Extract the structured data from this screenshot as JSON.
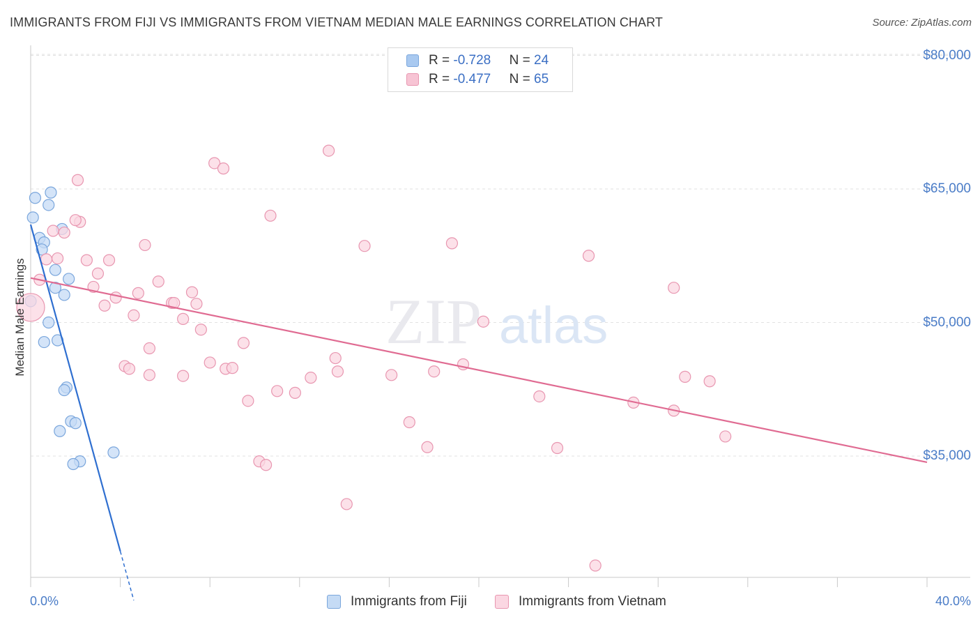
{
  "title": "IMMIGRANTS FROM FIJI VS IMMIGRANTS FROM VIETNAM MEDIAN MALE EARNINGS CORRELATION CHART",
  "source": "Source: ZipAtlas.com",
  "watermark": {
    "part1": "ZIP",
    "part2": "atlas"
  },
  "stats": [
    {
      "r_label": "R = ",
      "r_value": "-0.728",
      "n_label": "N = ",
      "n_value": "24",
      "color": "#a9c9f0",
      "border": "#7aa6dc"
    },
    {
      "r_label": "R = ",
      "r_value": "-0.477",
      "n_label": "N = ",
      "n_value": "65",
      "color": "#f7c4d4",
      "border": "#e896b0"
    }
  ],
  "legend": [
    {
      "label": "Immigrants from Fiji",
      "color": "#c5dbf5",
      "border": "#7aa6dc"
    },
    {
      "label": "Immigrants from Vietnam",
      "color": "#fbd7e2",
      "border": "#e896b0"
    }
  ],
  "chart_data": {
    "type": "scatter",
    "title": "IMMIGRANTS FROM FIJI VS IMMIGRANTS FROM VIETNAM MEDIAN MALE EARNINGS CORRELATION CHART",
    "xlabel": "",
    "ylabel": "Median Male Earnings",
    "xlim": [
      0,
      40
    ],
    "ylim": [
      20000,
      82000
    ],
    "x_tick_labels": [
      "0.0%",
      "40.0%"
    ],
    "y_ticks": [
      35000,
      50000,
      65000,
      80000
    ],
    "y_tick_labels": [
      "$35,000",
      "$50,000",
      "$65,000",
      "$80,000"
    ],
    "grid": true,
    "series": [
      {
        "name": "Immigrants from Fiji",
        "color": "#7aa6dc",
        "fill": "#c5dbf5",
        "line_color": "#2f6fd0",
        "trend": {
          "x1": 0.0,
          "y1": 61000,
          "x2": 4.0,
          "y2": 24300,
          "dashed_to_x": 4.6
        },
        "points": [
          [
            0.2,
            64000
          ],
          [
            0.9,
            64600
          ],
          [
            0.8,
            63200
          ],
          [
            0.1,
            61800
          ],
          [
            1.4,
            60500
          ],
          [
            0.4,
            59500
          ],
          [
            0.6,
            59000
          ],
          [
            0.5,
            58200
          ],
          [
            1.1,
            55900
          ],
          [
            1.7,
            54900
          ],
          [
            1.1,
            53900
          ],
          [
            1.5,
            53100
          ],
          [
            0.0,
            52400
          ],
          [
            0.8,
            50000
          ],
          [
            1.2,
            48000
          ],
          [
            0.6,
            47800
          ],
          [
            1.6,
            42700
          ],
          [
            1.5,
            42400
          ],
          [
            1.8,
            38900
          ],
          [
            2.0,
            38700
          ],
          [
            1.3,
            37800
          ],
          [
            3.7,
            35400
          ],
          [
            2.2,
            34400
          ],
          [
            1.9,
            34100
          ]
        ]
      },
      {
        "name": "Immigrants from Vietnam",
        "color": "#e896b0",
        "fill": "#fbd7e2",
        "line_color": "#e06b92",
        "trend": {
          "x1": 0.0,
          "y1": 55000,
          "x2": 40.0,
          "y2": 34300
        },
        "points": [
          [
            0.0,
            51700
          ],
          [
            0.4,
            54800
          ],
          [
            0.7,
            57100
          ],
          [
            1.2,
            57200
          ],
          [
            1.0,
            60300
          ],
          [
            1.5,
            60100
          ],
          [
            2.2,
            61300
          ],
          [
            2.0,
            61500
          ],
          [
            2.1,
            66000
          ],
          [
            2.5,
            57000
          ],
          [
            3.0,
            55500
          ],
          [
            2.8,
            54000
          ],
          [
            3.5,
            57000
          ],
          [
            3.3,
            51900
          ],
          [
            3.8,
            52800
          ],
          [
            4.8,
            53300
          ],
          [
            5.1,
            58700
          ],
          [
            4.6,
            50800
          ],
          [
            5.7,
            54600
          ],
          [
            5.3,
            47100
          ],
          [
            4.2,
            45100
          ],
          [
            4.4,
            44800
          ],
          [
            6.3,
            52200
          ],
          [
            6.4,
            52200
          ],
          [
            7.2,
            53400
          ],
          [
            7.6,
            49200
          ],
          [
            6.8,
            50400
          ],
          [
            7.4,
            52100
          ],
          [
            8.2,
            67900
          ],
          [
            8.6,
            67300
          ],
          [
            8.0,
            45500
          ],
          [
            8.7,
            44800
          ],
          [
            9.0,
            44900
          ],
          [
            9.5,
            47700
          ],
          [
            10.7,
            62000
          ],
          [
            9.7,
            41200
          ],
          [
            10.2,
            34400
          ],
          [
            10.5,
            34000
          ],
          [
            11.0,
            42300
          ],
          [
            11.8,
            42100
          ],
          [
            12.5,
            43800
          ],
          [
            13.3,
            69300
          ],
          [
            13.6,
            46000
          ],
          [
            13.7,
            44500
          ],
          [
            14.1,
            29600
          ],
          [
            14.9,
            58600
          ],
          [
            16.1,
            44100
          ],
          [
            16.9,
            38800
          ],
          [
            17.7,
            36000
          ],
          [
            18.0,
            44500
          ],
          [
            18.8,
            58900
          ],
          [
            19.3,
            45300
          ],
          [
            20.2,
            50100
          ],
          [
            22.7,
            41700
          ],
          [
            23.5,
            35900
          ],
          [
            24.9,
            57500
          ],
          [
            25.2,
            22700
          ],
          [
            26.9,
            41000
          ],
          [
            28.7,
            53900
          ],
          [
            28.7,
            40100
          ],
          [
            29.2,
            43900
          ],
          [
            30.3,
            43400
          ],
          [
            31.0,
            37200
          ],
          [
            5.3,
            44100
          ],
          [
            6.8,
            44000
          ]
        ]
      }
    ]
  }
}
